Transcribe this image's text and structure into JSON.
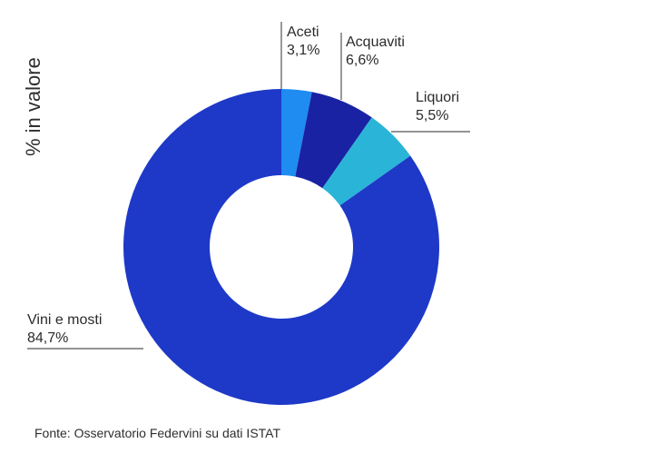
{
  "chart_data": {
    "type": "pie",
    "variant": "donut",
    "ylabel": "% in valore",
    "source": "Fonte: Osservatorio Federvini su dati ISTAT",
    "slices": [
      {
        "name": "Aceti",
        "value": 3.1,
        "label": "3,1%",
        "color": "#1E8CF0"
      },
      {
        "name": "Acquaviti",
        "value": 6.6,
        "label": "6,6%",
        "color": "#1A22A4"
      },
      {
        "name": "Liquori",
        "value": 5.5,
        "label": "5,5%",
        "color": "#2AB5D8"
      },
      {
        "name": "Vini e mosti",
        "value": 84.7,
        "label": "84,7%",
        "color": "#1E39C7"
      }
    ],
    "start_angle": "12 o'clock",
    "direction": "clockwise",
    "leader_line_color": "#555555"
  }
}
